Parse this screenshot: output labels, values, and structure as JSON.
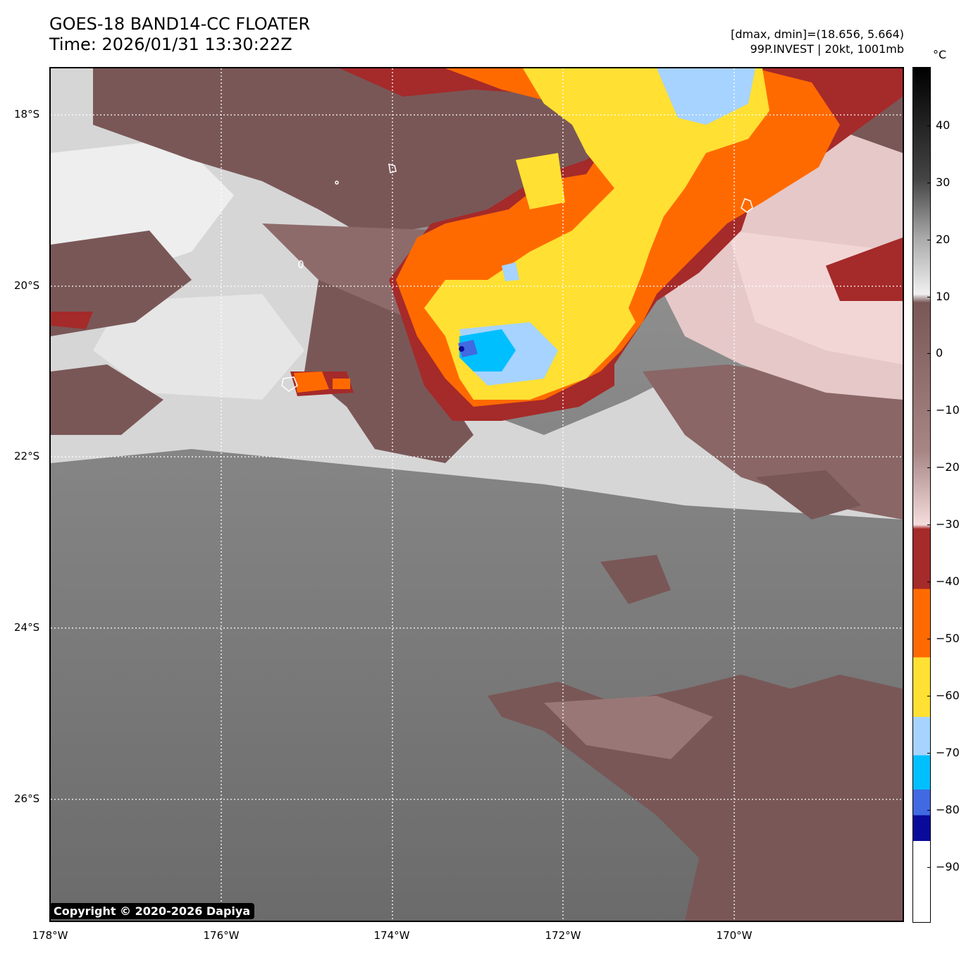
{
  "header": {
    "title_line1": "GOES-18 BAND14-CC FLOATER",
    "title_line2": "Time: 2026/01/31 13:30:22Z",
    "meta_line1": "[dmax, dmin]=(18.656, 5.664)",
    "meta_line2": "99P.INVEST | 20kt, 1001mb"
  },
  "map": {
    "lat_labels": [
      "18°S",
      "20°S",
      "22°S",
      "24°S",
      "26°S"
    ],
    "lon_labels": [
      "178°W",
      "176°W",
      "174°W",
      "172°W",
      "170°W"
    ],
    "gridlines": "dotted white"
  },
  "colorbar": {
    "unit": "°C",
    "ticks": [
      "40",
      "30",
      "20",
      "10",
      "0",
      "−10",
      "−20",
      "−30",
      "−40",
      "−50",
      "−60",
      "−70",
      "−80",
      "−90"
    ],
    "colors": {
      "very_cold_white": "#ffffff",
      "navy": "#0a0a9a",
      "royal_blue": "#4169e1",
      "deep_sky_blue": "#00bfff",
      "light_blue": "#a6d3ff",
      "yellow": "#ffe033",
      "orange": "#ff6a00",
      "dark_red": "#a52a2a",
      "pale_pink": "#f5dcdc",
      "mauve_brown": "#7a5757",
      "light_grey": "#f0f0f0",
      "black": "#000000"
    }
  },
  "footer": {
    "copyright": "Copyright © 2020-2026 Dapiya"
  }
}
